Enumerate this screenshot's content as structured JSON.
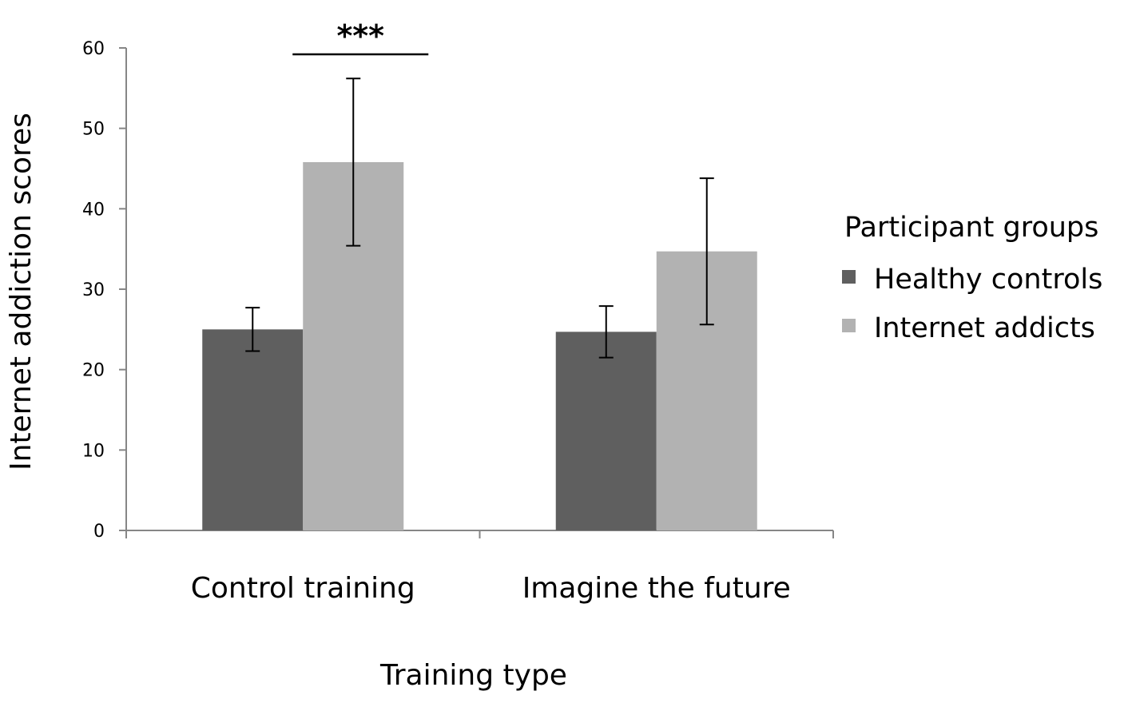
{
  "chart_data": {
    "type": "bar",
    "categories": [
      "Control training",
      "Imagine the future"
    ],
    "series": [
      {
        "name": "Healthy controls",
        "values": [
          25,
          24.7
        ],
        "error": [
          2.7,
          3.2
        ],
        "color": "#5f5f5f"
      },
      {
        "name": "Internet addicts",
        "values": [
          45.8,
          34.7
        ],
        "error": [
          10.4,
          9.1
        ],
        "color": "#b2b2b2"
      }
    ],
    "xlabel": "Training type",
    "ylabel": "Internet addiction scores",
    "ylim": [
      0,
      60
    ],
    "yticks": [
      0,
      10,
      20,
      30,
      40,
      50,
      60
    ],
    "legend": {
      "title": "Participant groups",
      "placement": "right"
    },
    "grid": false,
    "annotation": {
      "text": "***",
      "category": "Control training"
    }
  }
}
